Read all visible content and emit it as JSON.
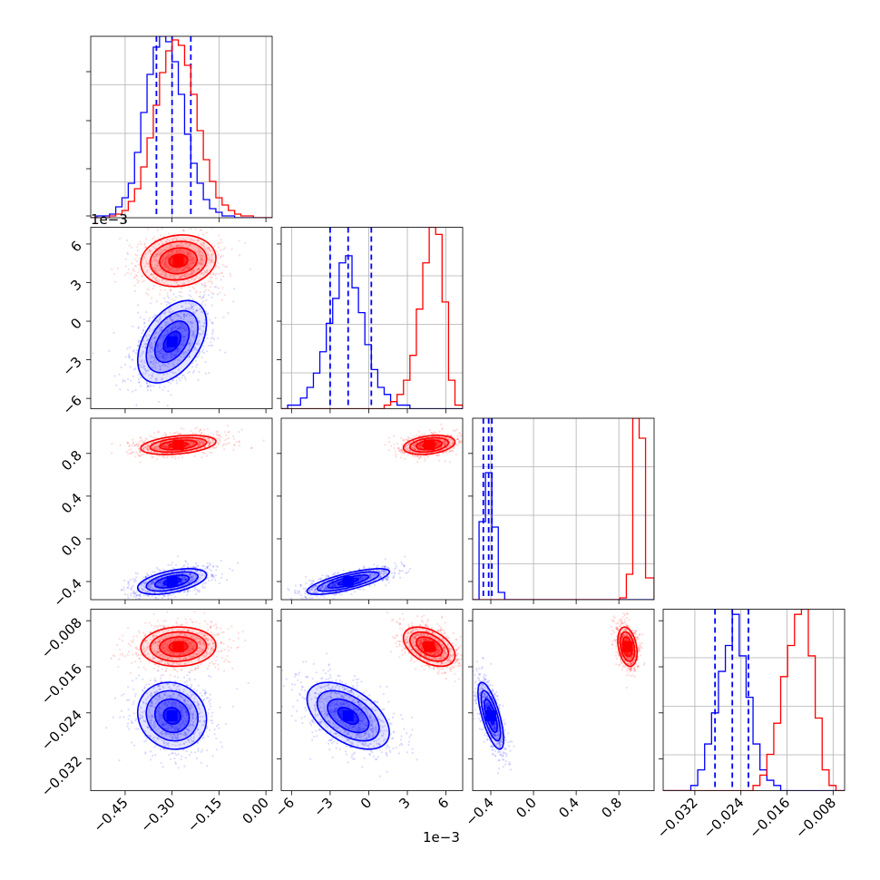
{
  "chart_data": {
    "type": "corner",
    "colors": {
      "series_a": "#0000ff",
      "series_b": "#ff0000"
    },
    "grid": true,
    "params": [
      {
        "range": [
          -0.56,
          0.02
        ],
        "offset_label": "",
        "ticks": [
          -0.45,
          -0.3,
          -0.15,
          0.0
        ],
        "tick_labels": [
          "−0.45",
          "−0.30",
          "−0.15",
          "0.00"
        ]
      },
      {
        "range": [
          -0.0068,
          0.0073
        ],
        "offset_label": "1e−3",
        "ticks": [
          -0.006,
          -0.003,
          0.0,
          0.003,
          0.006
        ],
        "tick_labels": [
          "−6",
          "−3",
          "0",
          "3",
          "6"
        ]
      },
      {
        "range": [
          -0.57,
          1.13
        ],
        "offset_label": "",
        "ticks": [
          -0.4,
          0.0,
          0.4,
          0.8
        ],
        "tick_labels": [
          "−0.4",
          "0.0",
          "0.4",
          "0.8"
        ]
      },
      {
        "range": [
          -0.0375,
          -0.006
        ],
        "offset_label": "",
        "ticks": [
          -0.032,
          -0.024,
          -0.016,
          -0.008
        ],
        "tick_labels": [
          "−0.032",
          "−0.024",
          "−0.016",
          "−0.008"
        ]
      }
    ],
    "series": [
      {
        "key": "series_a",
        "color": "#0000ff",
        "mean": [
          -0.3,
          -0.0016,
          -0.4,
          -0.0245
        ],
        "sd": [
          0.055,
          0.0016,
          0.06,
          0.0029
        ],
        "corr": [
          [
            1,
            0.45,
            0.5,
            -0.1
          ],
          [
            0.45,
            1,
            0.75,
            -0.5
          ],
          [
            0.5,
            0.75,
            1,
            -0.7
          ],
          [
            -0.1,
            -0.5,
            -0.7,
            1
          ]
        ],
        "quantiles": [
          [
            -0.35,
            -0.3,
            -0.24
          ],
          [
            -0.003,
            -0.0016,
            0.0002
          ],
          [
            -0.47,
            -0.42,
            -0.39
          ],
          [
            -0.0285,
            -0.0255,
            -0.0227
          ]
        ],
        "hist": [
          {
            "edges": [
              -0.56,
              -0.54,
              -0.52,
              -0.5,
              -0.48,
              -0.46,
              -0.44,
              -0.42,
              -0.4,
              -0.38,
              -0.36,
              -0.34,
              -0.32,
              -0.3,
              -0.28,
              -0.26,
              -0.24,
              -0.22,
              -0.2,
              -0.18,
              -0.16,
              -0.14,
              -0.12,
              -0.1,
              -0.08,
              -0.06,
              -0.04,
              -0.02,
              0.0,
              0.02
            ],
            "counts": [
              0,
              1,
              1,
              2,
              6,
              11,
              19,
              36,
              58,
              79,
              94,
              100,
              97,
              86,
              68,
              46,
              30,
              19,
              10,
              5,
              3,
              1,
              1,
              0,
              0,
              0,
              0,
              0,
              0
            ]
          },
          {
            "edges": [
              -0.0068,
              -0.0063,
              -0.0058,
              -0.0053,
              -0.0048,
              -0.0043,
              -0.0038,
              -0.0033,
              -0.0028,
              -0.0023,
              -0.0018,
              -0.0013,
              -0.0008,
              -0.0003,
              0.0002,
              0.0007,
              0.0012,
              0.0017,
              0.0022,
              0.0027,
              0.0032,
              0.0037,
              0.0042,
              0.0047,
              0.0052,
              0.0057,
              0.0062,
              0.0067,
              0.0073
            ],
            "counts": [
              0,
              1,
              1,
              3,
              6,
              10,
              16,
              24,
              31,
              41,
              43,
              34,
              27,
              18,
              11,
              6,
              4,
              2,
              1,
              1,
              0,
              0,
              0,
              0,
              0,
              0,
              0,
              0
            ]
          },
          {
            "edges": [
              -0.57,
              -0.51,
              -0.45,
              -0.39,
              -0.33,
              -0.27,
              -0.21,
              -0.15,
              -0.09,
              -0.03,
              0.03,
              0.09,
              0.15,
              0.21,
              0.27,
              0.33,
              0.39,
              0.45,
              0.51,
              0.57,
              0.63,
              0.69,
              0.75,
              0.81,
              0.87,
              0.93,
              0.99,
              1.05,
              1.13
            ],
            "counts": [
              0,
              43,
              70,
              40,
              4,
              0,
              0,
              0,
              0,
              0,
              0,
              0,
              0,
              0,
              0,
              0,
              0,
              0,
              0,
              0,
              0,
              0,
              0,
              0,
              0,
              0,
              0,
              0
            ]
          },
          {
            "edges": [
              -0.0375,
              -0.0363,
              -0.0351,
              -0.0339,
              -0.0327,
              -0.0315,
              -0.0303,
              -0.0291,
              -0.0279,
              -0.0267,
              -0.0255,
              -0.0243,
              -0.0231,
              -0.0219,
              -0.0207,
              -0.0195,
              -0.0183,
              -0.0171,
              -0.0159,
              -0.0147,
              -0.0135,
              -0.0123,
              -0.0111,
              -0.0099,
              -0.0087,
              -0.0075,
              -0.006
            ],
            "counts": [
              0,
              0,
              0,
              0,
              1,
              4,
              9,
              15,
              23,
              28,
              34,
              26,
              18,
              9,
              4,
              2,
              1,
              0,
              0,
              0,
              0,
              0,
              0,
              0,
              0,
              0
            ]
          }
        ]
      },
      {
        "key": "series_b",
        "color": "#ff0000",
        "mean": [
          -0.28,
          0.0047,
          0.88,
          -0.0125
        ],
        "sd": [
          0.06,
          0.001,
          0.045,
          0.0017
        ],
        "corr": [
          [
            1,
            0.1,
            0.35,
            0.05
          ],
          [
            0.1,
            1,
            0.3,
            -0.45
          ],
          [
            0.35,
            0.3,
            1,
            -0.3
          ],
          [
            0.05,
            -0.45,
            -0.3,
            1
          ]
        ],
        "quantiles": [],
        "hist": [
          {
            "edges": [
              -0.56,
              -0.54,
              -0.52,
              -0.5,
              -0.48,
              -0.46,
              -0.44,
              -0.42,
              -0.4,
              -0.38,
              -0.36,
              -0.34,
              -0.32,
              -0.3,
              -0.28,
              -0.26,
              -0.24,
              -0.22,
              -0.2,
              -0.18,
              -0.16,
              -0.14,
              -0.12,
              -0.1,
              -0.08,
              -0.06,
              -0.04,
              -0.02,
              0.0,
              0.02
            ],
            "counts": [
              0,
              0,
              0,
              1,
              2,
              4,
              9,
              16,
              28,
              44,
              62,
              80,
              92,
              98,
              95,
              84,
              68,
              48,
              32,
              20,
              11,
              7,
              4,
              2,
              1,
              1,
              0,
              0,
              0
            ]
          },
          {
            "edges": [
              -0.0068,
              -0.0063,
              -0.0058,
              -0.0053,
              -0.0048,
              -0.0043,
              -0.0038,
              -0.0033,
              -0.0028,
              -0.0023,
              -0.0018,
              -0.0013,
              -0.0008,
              -0.0003,
              0.0002,
              0.0007,
              0.0012,
              0.0017,
              0.0022,
              0.0027,
              0.0032,
              0.0037,
              0.0042,
              0.0047,
              0.0052,
              0.0057,
              0.0062,
              0.0067,
              0.0073
            ],
            "counts": [
              0,
              0,
              0,
              0,
              0,
              0,
              0,
              0,
              0,
              0,
              0,
              0,
              0,
              0,
              0,
              0,
              1,
              2,
              4,
              8,
              15,
              28,
              41,
              51,
              49,
              30,
              8,
              1
            ]
          },
          {
            "edges": [
              -0.57,
              -0.51,
              -0.45,
              -0.39,
              -0.33,
              -0.27,
              -0.21,
              -0.15,
              -0.09,
              -0.03,
              0.03,
              0.09,
              0.15,
              0.21,
              0.27,
              0.33,
              0.39,
              0.45,
              0.51,
              0.57,
              0.63,
              0.69,
              0.75,
              0.81,
              0.87,
              0.93,
              0.99,
              1.05,
              1.13
            ],
            "counts": [
              0,
              0,
              0,
              0,
              0,
              0,
              0,
              0,
              0,
              0,
              0,
              0,
              0,
              0,
              0,
              0,
              0,
              0,
              0,
              0,
              0,
              0,
              0,
              1,
              14,
              100,
              89,
              12
            ]
          },
          {
            "edges": [
              -0.0375,
              -0.0363,
              -0.0351,
              -0.0339,
              -0.0327,
              -0.0315,
              -0.0303,
              -0.0291,
              -0.0279,
              -0.0267,
              -0.0255,
              -0.0243,
              -0.0231,
              -0.0219,
              -0.0207,
              -0.0195,
              -0.0183,
              -0.0171,
              -0.0159,
              -0.0147,
              -0.0135,
              -0.0123,
              -0.0111,
              -0.0099,
              -0.0087,
              -0.0075,
              -0.006
            ],
            "counts": [
              0,
              0,
              0,
              0,
              0,
              0,
              0,
              0,
              0,
              0,
              0,
              0,
              0,
              1,
              3,
              7,
              13,
              22,
              28,
              34,
              35,
              26,
              14,
              4,
              1,
              0
            ]
          }
        ]
      }
    ]
  }
}
